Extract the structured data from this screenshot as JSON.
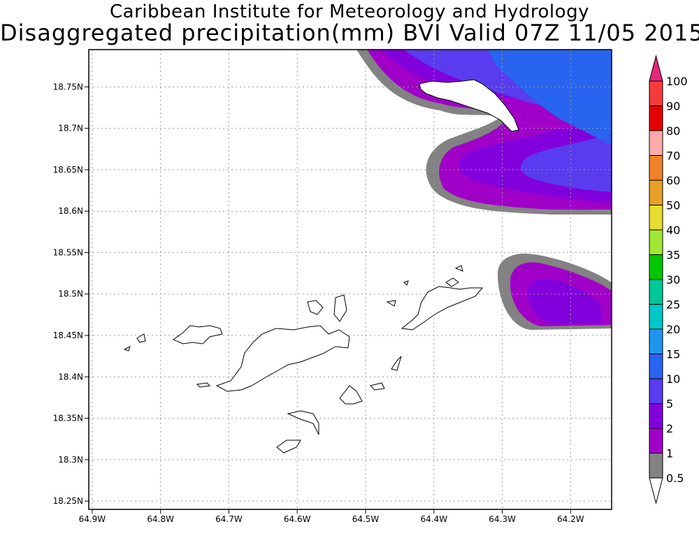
{
  "title": {
    "line1": "Caribbean Institute for Meteorology and Hydrology",
    "line2": "Disaggregated precipitation(mm) BVI Valid 07Z 11/05 2015"
  },
  "map": {
    "lon_range": [
      -64.905,
      -64.14
    ],
    "lat_range": [
      18.24,
      18.795
    ],
    "lat_ticks": [
      {
        "value": 18.75,
        "label": "18.75N"
      },
      {
        "value": 18.7,
        "label": "18.7N"
      },
      {
        "value": 18.65,
        "label": "18.65N"
      },
      {
        "value": 18.6,
        "label": "18.6N"
      },
      {
        "value": 18.55,
        "label": "18.55N"
      },
      {
        "value": 18.5,
        "label": "18.5N"
      },
      {
        "value": 18.45,
        "label": "18.45N"
      },
      {
        "value": 18.4,
        "label": "18.4N"
      },
      {
        "value": 18.35,
        "label": "18.35N"
      },
      {
        "value": 18.3,
        "label": "18.3N"
      },
      {
        "value": 18.25,
        "label": "18.25N"
      }
    ],
    "lon_ticks": [
      {
        "value": -64.9,
        "label": "64.9W"
      },
      {
        "value": -64.8,
        "label": "64.8W"
      },
      {
        "value": -64.7,
        "label": "64.7W"
      },
      {
        "value": -64.6,
        "label": "64.6W"
      },
      {
        "value": -64.5,
        "label": "64.5W"
      },
      {
        "value": -64.4,
        "label": "64.4W"
      },
      {
        "value": -64.3,
        "label": "64.3W"
      },
      {
        "value": -64.2,
        "label": "64.2W"
      }
    ],
    "grid": "dotted"
  },
  "colorbar": {
    "labels": [
      "100",
      "90",
      "80",
      "70",
      "60",
      "50",
      "40",
      "35",
      "30",
      "25",
      "20",
      "15",
      "10",
      "5",
      "2",
      "1",
      "0.5"
    ],
    "colors": [
      "#e6287a",
      "#f53c3c",
      "#e60000",
      "#ffaaaa",
      "#f08228",
      "#e6a028",
      "#e6dc32",
      "#a0e632",
      "#00c800",
      "#00c896",
      "#00c8c8",
      "#1e96f0",
      "#2864f0",
      "#5a3cf0",
      "#8200dc",
      "#a000c8",
      "#828282",
      "#ffffff"
    ]
  }
}
